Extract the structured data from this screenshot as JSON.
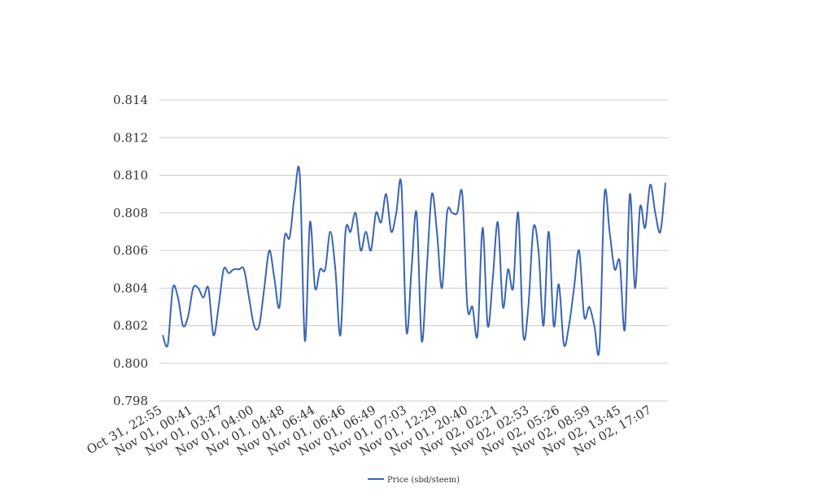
{
  "chart_data": {
    "type": "line",
    "title": "",
    "xlabel": "",
    "ylabel": "",
    "ylim": [
      0.798,
      0.814
    ],
    "yticks": [
      "0.798",
      "0.800",
      "0.802",
      "0.804",
      "0.806",
      "0.808",
      "0.810",
      "0.812",
      "0.814"
    ],
    "xtick_labels": [
      "Oct 31, 22:55",
      "Nov 01, 00:41",
      "Nov 01, 03:47",
      "Nov 01, 04:00",
      "Nov 01, 04:48",
      "Nov 01, 06:44",
      "Nov 01, 06:46",
      "Nov 01, 06:49",
      "Nov 01, 07:03",
      "Nov 01, 12:29",
      "Nov 01, 20:40",
      "Nov 02, 02:21",
      "Nov 02, 02:53",
      "Nov 02, 05:26",
      "Nov 02, 08:59",
      "Nov 02, 13:45",
      "Nov 02, 17:07"
    ],
    "grid": true,
    "legend_position": "bottom",
    "series": [
      {
        "name": "Price (sbd/steem)",
        "color": "#3a64b5",
        "values": [
          0.8015,
          0.801,
          0.804,
          0.8035,
          0.802,
          0.8025,
          0.804,
          0.804,
          0.8035,
          0.804,
          0.8015,
          0.803,
          0.805,
          0.8048,
          0.805,
          0.805,
          0.805,
          0.8035,
          0.802,
          0.802,
          0.804,
          0.806,
          0.8045,
          0.803,
          0.8067,
          0.8067,
          0.809,
          0.81,
          0.8012,
          0.8075,
          0.804,
          0.805,
          0.805,
          0.807,
          0.805,
          0.8015,
          0.807,
          0.807,
          0.808,
          0.806,
          0.807,
          0.806,
          0.808,
          0.8075,
          0.809,
          0.807,
          0.808,
          0.8095,
          0.8017,
          0.805,
          0.808,
          0.8012,
          0.805,
          0.809,
          0.807,
          0.804,
          0.808,
          0.808,
          0.808,
          0.809,
          0.803,
          0.803,
          0.8015,
          0.8072,
          0.802,
          0.8045,
          0.8075,
          0.803,
          0.805,
          0.804,
          0.808,
          0.8015,
          0.803,
          0.8072,
          0.806,
          0.802,
          0.807,
          0.802,
          0.8042,
          0.801,
          0.802,
          0.804,
          0.806,
          0.8025,
          0.803,
          0.802,
          0.8008,
          0.809,
          0.807,
          0.805,
          0.8054,
          0.8018,
          0.809,
          0.804,
          0.8083,
          0.8072,
          0.8095,
          0.808,
          0.807,
          0.8096
        ]
      }
    ]
  }
}
